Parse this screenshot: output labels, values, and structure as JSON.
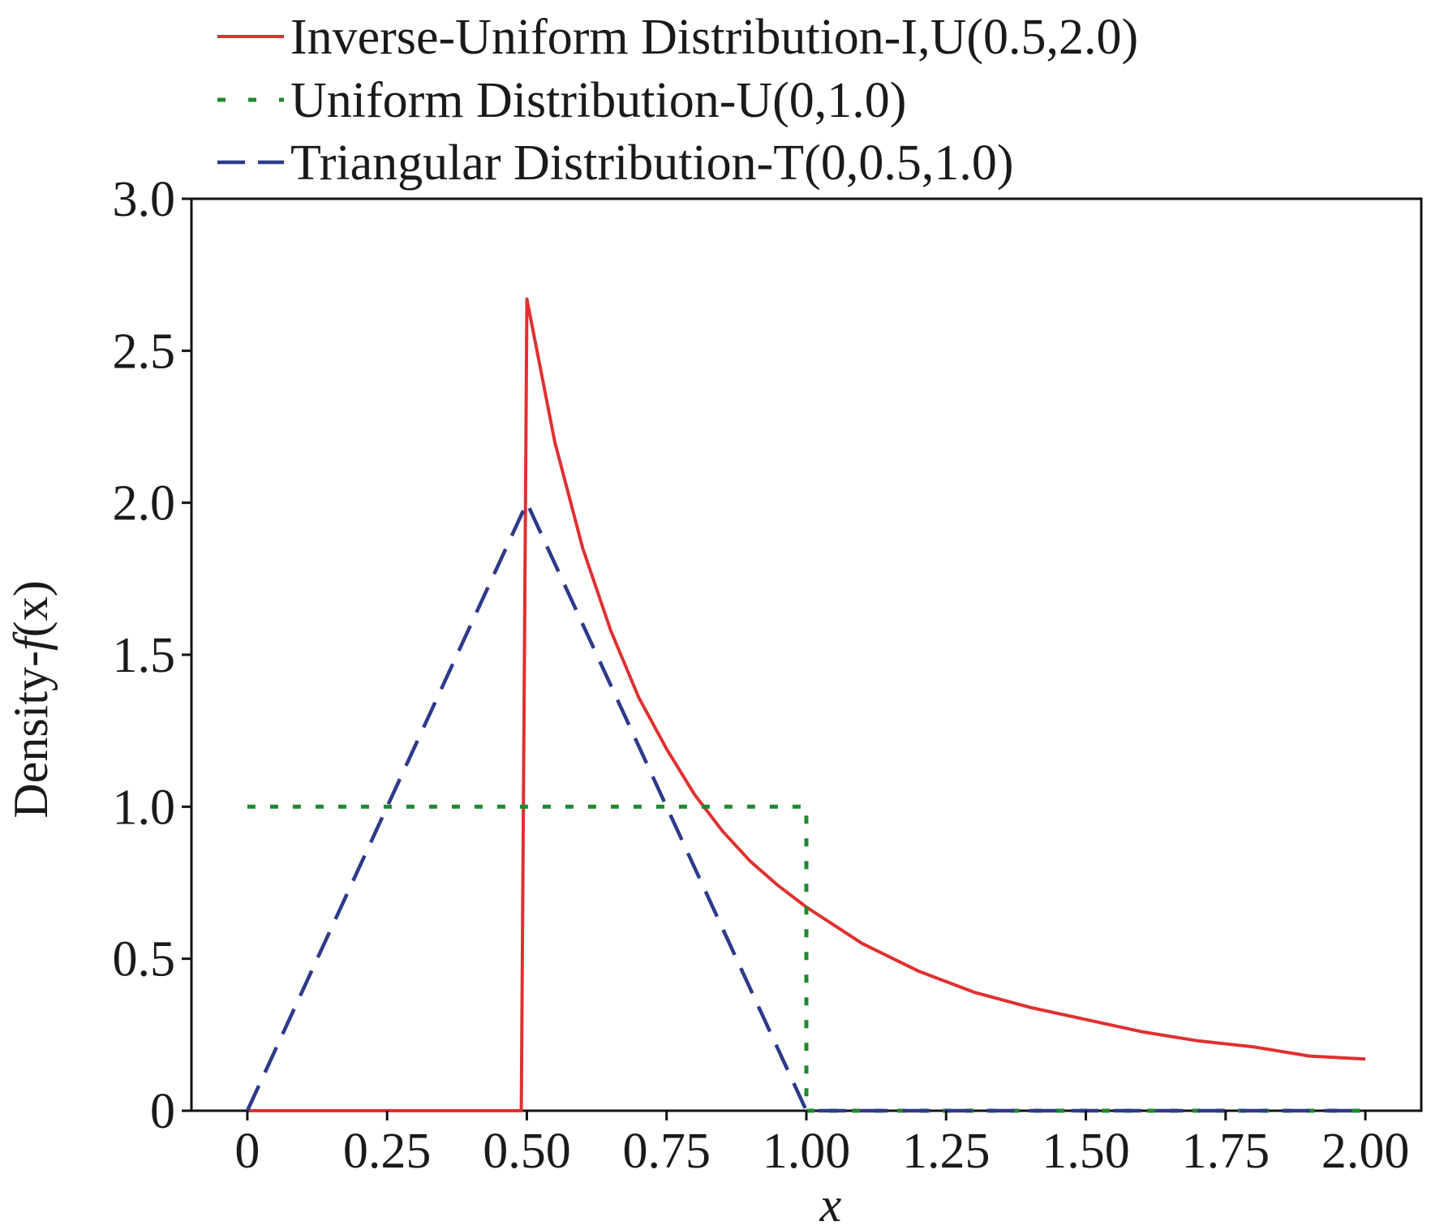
{
  "chart_data": {
    "type": "line",
    "title": "",
    "xlabel": "x",
    "ylabel_prefix": "Density-",
    "ylabel_func": "f",
    "ylabel_arg": "(x)",
    "xlim": [
      -0.1,
      2.1
    ],
    "ylim": [
      0,
      3.0
    ],
    "x_ticks": [
      0,
      0.25,
      0.5,
      0.75,
      1.0,
      1.25,
      1.5,
      1.75,
      2.0
    ],
    "x_tick_labels": [
      "0",
      "0.25",
      "0.50",
      "0.75",
      "1.00",
      "1.25",
      "1.50",
      "1.75",
      "2.00"
    ],
    "y_ticks": [
      0,
      0.5,
      1.0,
      1.5,
      2.0,
      2.5,
      3.0
    ],
    "y_tick_labels": [
      "0",
      "0.5",
      "1.0",
      "1.5",
      "2.0",
      "2.5",
      "3.0"
    ],
    "grid": false,
    "legend_position": "top",
    "series": [
      {
        "name": "Inverse-Uniform Distribution-I,U(0.5,2.0)",
        "color": "#e03030",
        "style": "solid",
        "x": [
          0,
          0.49,
          0.5,
          0.55,
          0.6,
          0.65,
          0.7,
          0.75,
          0.8,
          0.85,
          0.9,
          0.95,
          1.0,
          1.1,
          1.2,
          1.3,
          1.4,
          1.5,
          1.6,
          1.7,
          1.8,
          1.9,
          2.0
        ],
        "y": [
          0,
          0,
          2.67,
          2.2,
          1.85,
          1.58,
          1.36,
          1.19,
          1.04,
          0.92,
          0.82,
          0.74,
          0.67,
          0.55,
          0.46,
          0.39,
          0.34,
          0.3,
          0.26,
          0.23,
          0.21,
          0.18,
          0.17
        ]
      },
      {
        "name": "Uniform Distribution-U(0,1.0)",
        "color": "#1e8a2e",
        "style": "dotted",
        "x": [
          0,
          1.0,
          1.0,
          2.0
        ],
        "y": [
          1.0,
          1.0,
          0,
          0
        ]
      },
      {
        "name": "Triangular Distribution-T(0,0.5,1.0)",
        "color": "#2e3a8a",
        "style": "dashed",
        "x": [
          0,
          0.5,
          1.0,
          2.0
        ],
        "y": [
          0,
          2.0,
          0,
          0
        ]
      }
    ]
  }
}
